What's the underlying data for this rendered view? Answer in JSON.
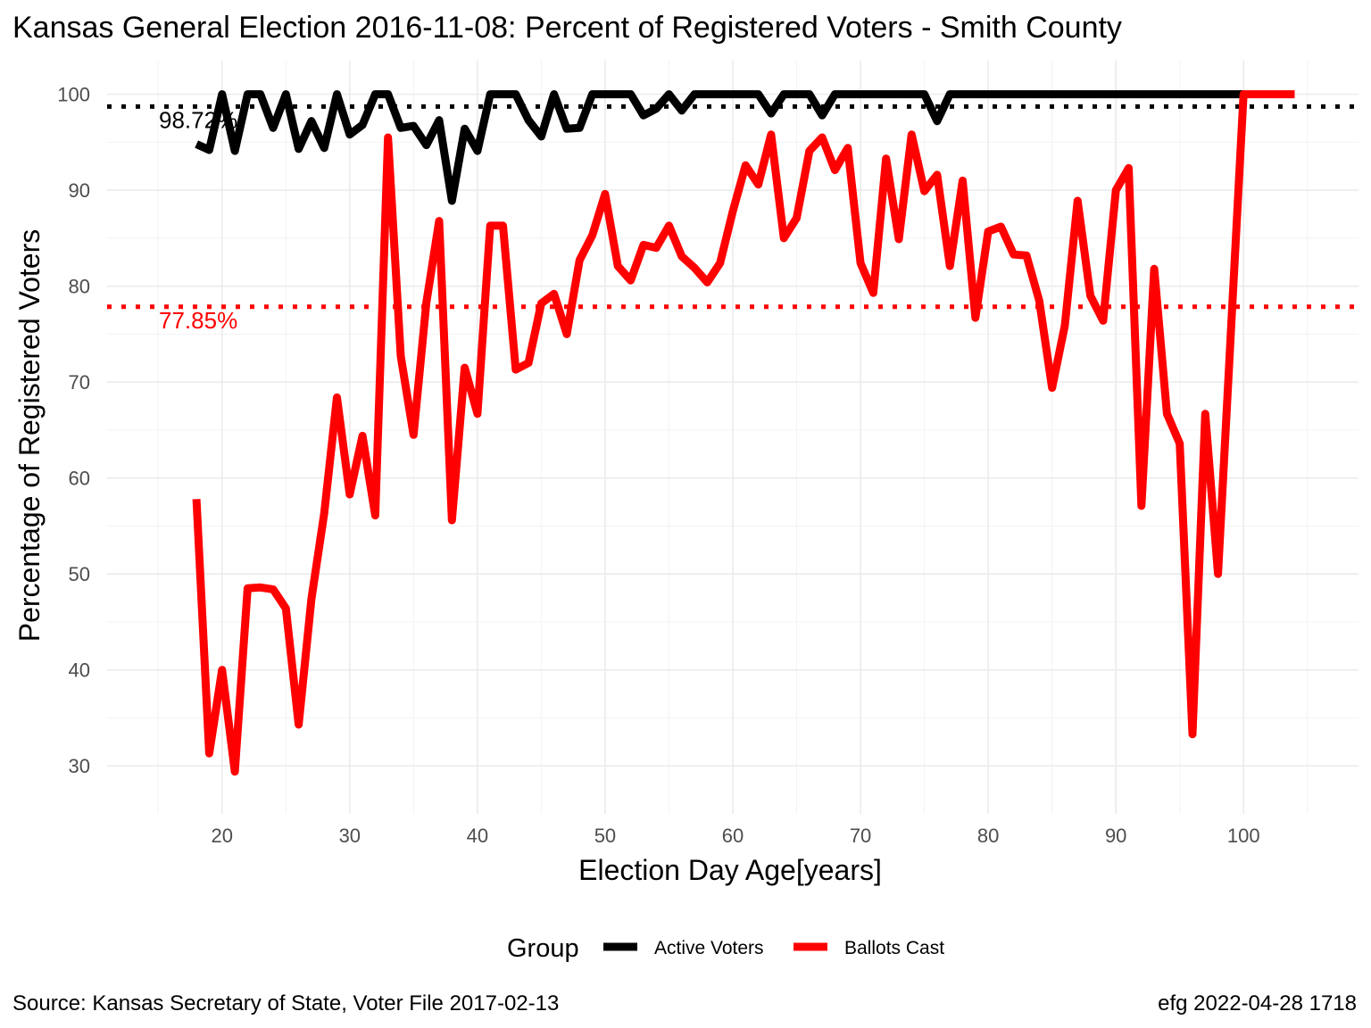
{
  "chart_data": {
    "type": "line",
    "title": "Kansas General Election 2016-11-08:  Percent of Registered Voters - Smith County",
    "xlabel": "Election Day Age[years]",
    "ylabel": "Percentage of Registered Voters",
    "xlim": [
      11,
      109
    ],
    "ylim": [
      25,
      103.5
    ],
    "x_ticks": [
      20,
      30,
      40,
      50,
      60,
      70,
      80,
      90,
      100
    ],
    "y_ticks": [
      30,
      40,
      50,
      60,
      70,
      80,
      90,
      100
    ],
    "grid": true,
    "legend": {
      "title": "Group",
      "position": "bottom"
    },
    "series": [
      {
        "name": "Active Voters",
        "color": "#000000",
        "x": [
          18,
          19,
          20,
          21,
          22,
          23,
          24,
          25,
          26,
          27,
          28,
          29,
          30,
          31,
          32,
          33,
          34,
          35,
          36,
          37,
          38,
          39,
          40,
          41,
          42,
          43,
          44,
          45,
          46,
          47,
          48,
          49,
          50,
          51,
          52,
          53,
          54,
          55,
          56,
          57,
          58,
          59,
          60,
          61,
          62,
          63,
          64,
          65,
          66,
          67,
          68,
          69,
          70,
          71,
          72,
          73,
          74,
          75,
          76,
          77,
          78,
          79,
          80,
          81,
          82,
          83,
          84,
          85,
          86,
          87,
          88,
          89,
          90,
          91,
          92,
          93,
          94,
          95,
          96,
          97,
          98,
          99,
          100
        ],
        "y": [
          94.8,
          94.2,
          100,
          94.1,
          100,
          100,
          96.5,
          100,
          94.3,
          97.2,
          94.4,
          100,
          95.8,
          96.8,
          100,
          100,
          96.5,
          96.7,
          94.7,
          97.3,
          88.9,
          96.4,
          94.1,
          100,
          100,
          100,
          97.3,
          95.6,
          100,
          96.4,
          96.5,
          100,
          100,
          100,
          100,
          97.8,
          98.5,
          100,
          98.3,
          100,
          100,
          100,
          100,
          100,
          100,
          98.0,
          100,
          100,
          100,
          97.8,
          100,
          100,
          100,
          100,
          100,
          100,
          100,
          100,
          97.2,
          100,
          100,
          100,
          100,
          100,
          100,
          100,
          100,
          100,
          100,
          100,
          100,
          100,
          100,
          100,
          100,
          100,
          100,
          100,
          100,
          100,
          100,
          100,
          100
        ]
      },
      {
        "name": "Ballots Cast",
        "color": "#ff0000",
        "x": [
          18,
          19,
          20,
          21,
          22,
          23,
          24,
          25,
          26,
          27,
          28,
          29,
          30,
          31,
          32,
          33,
          34,
          35,
          36,
          37,
          38,
          39,
          40,
          41,
          42,
          43,
          44,
          45,
          46,
          47,
          48,
          49,
          50,
          51,
          52,
          53,
          54,
          55,
          56,
          57,
          58,
          59,
          60,
          61,
          62,
          63,
          64,
          65,
          66,
          67,
          68,
          69,
          70,
          71,
          72,
          73,
          74,
          75,
          76,
          77,
          78,
          79,
          80,
          81,
          82,
          83,
          84,
          85,
          86,
          87,
          88,
          89,
          90,
          91,
          92,
          93,
          94,
          95,
          96,
          97,
          98,
          99,
          100,
          101,
          102,
          103,
          104
        ],
        "y": [
          57.8,
          31.3,
          40.0,
          29.4,
          48.5,
          48.6,
          48.4,
          46.4,
          34.3,
          47.4,
          56.3,
          68.4,
          58.3,
          64.4,
          56.1,
          95.5,
          72.7,
          64.5,
          78.3,
          86.8,
          55.6,
          71.5,
          66.7,
          86.3,
          86.3,
          71.3,
          72.0,
          78.2,
          79.2,
          75.0,
          82.7,
          85.3,
          89.6,
          82.1,
          80.6,
          84.3,
          84.0,
          86.3,
          83.1,
          81.9,
          80.4,
          82.4,
          87.8,
          92.6,
          90.6,
          95.8,
          85.0,
          87.1,
          94.1,
          95.5,
          92.1,
          94.4,
          82.4,
          79.3,
          93.3,
          84.9,
          95.8,
          89.9,
          91.6,
          82.1,
          91.0,
          76.7,
          85.7,
          86.2,
          83.3,
          83.2,
          78.5,
          69.4,
          75.9,
          88.9,
          79.0,
          76.4,
          90.0,
          92.3,
          57.1,
          81.8,
          66.7,
          63.6,
          33.3,
          66.7,
          50.0,
          75.0,
          100,
          100,
          100,
          100,
          100
        ]
      }
    ],
    "reference_lines": [
      {
        "series": "Active Voters",
        "y": 98.72,
        "label": "98.72%",
        "color": "#000000",
        "style": "dotted"
      },
      {
        "series": "Ballots Cast",
        "y": 77.85,
        "label": "77.85%",
        "color": "#ff0000",
        "style": "dotted"
      }
    ],
    "caption_left": "Source:  Kansas Secretary of State, Voter File  2017-02-13",
    "caption_right": "efg 2022-04-28 1718"
  }
}
